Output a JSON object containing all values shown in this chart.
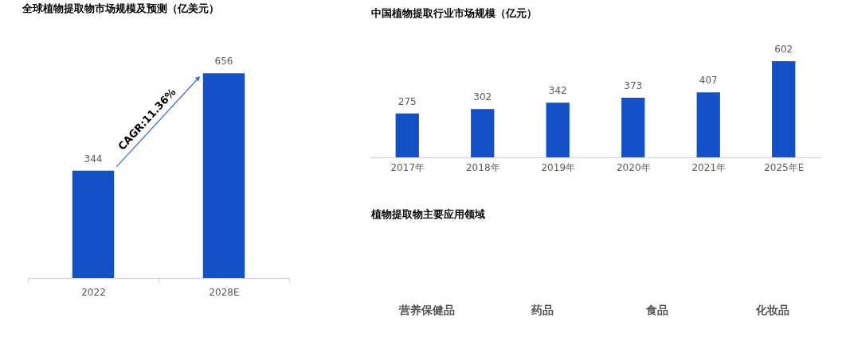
{
  "chart_data": [
    {
      "type": "bar",
      "title": "全球植物提取物市场规模及预测（亿美元）",
      "categories": [
        "2022",
        "2028E"
      ],
      "values": [
        344,
        656
      ],
      "color": "#1451c7",
      "data_labels": true,
      "annotations": [
        "CAGR:11.36%"
      ]
    },
    {
      "type": "bar",
      "title": "中国植物提取行业市场规模（亿元）",
      "categories": [
        "2017年",
        "2018年",
        "2019年",
        "2020年",
        "2021年",
        "2025年E"
      ],
      "values": [
        275,
        302,
        342,
        373,
        407,
        602
      ],
      "color": "#1451c7",
      "data_labels": true
    },
    {
      "type": "other",
      "title": "植物提取物主要应用领域",
      "annotations": [
        "营养保健品",
        "药品",
        "食品",
        "化妆品"
      ]
    }
  ]
}
